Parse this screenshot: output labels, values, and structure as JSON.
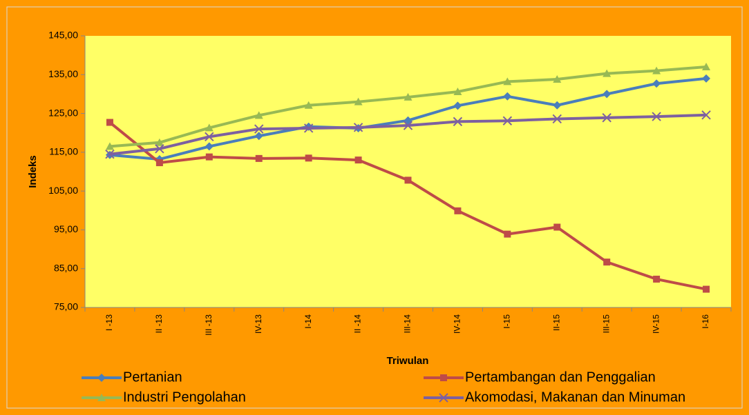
{
  "chart_data": {
    "type": "line",
    "x_label": "Triwulan",
    "y_label": "Indeks",
    "categories": [
      "I -13",
      "II -13",
      "III -13",
      "IV-13",
      "I-14",
      "II -14",
      "III-14",
      "IV-14",
      "I-15",
      "II-15",
      "III-15",
      "IV-15",
      "I-16"
    ],
    "series": [
      {
        "name": "Pertanian",
        "color": "#4a7ebb",
        "marker": "diamond",
        "values": [
          114.3,
          113.2,
          116.5,
          119.2,
          121.6,
          121.2,
          123.2,
          127.0,
          129.4,
          127.1,
          130.0,
          132.7,
          134.0
        ]
      },
      {
        "name": "Pertambangan dan Penggalian",
        "color": "#be4b48",
        "marker": "square",
        "values": [
          122.7,
          112.3,
          113.8,
          113.4,
          113.5,
          113.0,
          107.8,
          99.9,
          93.9,
          95.7,
          86.7,
          82.3,
          79.7
        ]
      },
      {
        "name": "Industri Pengolahan",
        "color": "#98b954",
        "marker": "triangle",
        "values": [
          116.5,
          117.5,
          121.3,
          124.5,
          127.1,
          128.0,
          129.2,
          130.6,
          133.2,
          133.8,
          135.3,
          136.0,
          137.0
        ]
      },
      {
        "name": "Akomodasi, Makanan dan Minuman",
        "color": "#7d60a0",
        "marker": "x",
        "values": [
          114.5,
          115.9,
          119.0,
          121.0,
          121.2,
          121.4,
          121.9,
          122.9,
          123.1,
          123.6,
          123.9,
          124.2,
          124.6
        ]
      }
    ],
    "ylim": [
      75,
      145
    ],
    "yticks": [
      {
        "value": 75,
        "label": "75,00"
      },
      {
        "value": 85,
        "label": "85,00"
      },
      {
        "value": 95,
        "label": "95,00"
      },
      {
        "value": 105,
        "label": "105,00"
      },
      {
        "value": 115,
        "label": "115,00"
      },
      {
        "value": 125,
        "label": "125,00"
      },
      {
        "value": 135,
        "label": "135,00"
      },
      {
        "value": 145,
        "label": "145,00"
      }
    ],
    "legend": "bottom"
  }
}
